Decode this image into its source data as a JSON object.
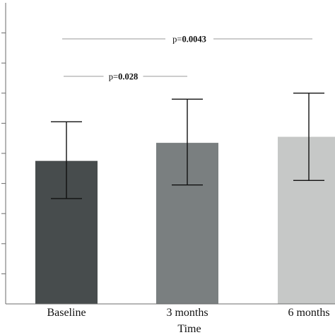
{
  "chart_data": {
    "type": "bar",
    "title": "",
    "xlabel": "Time",
    "ylabel": "",
    "ylim": [
      0,
      100
    ],
    "grid": false,
    "legend": "none",
    "categories": [
      "Baseline",
      "3 months",
      "6 months"
    ],
    "values": [
      47.5,
      53.5,
      55.5
    ],
    "error_bars": [
      {
        "low": 35,
        "high": 60.5
      },
      {
        "low": 39.5,
        "high": 68
      },
      {
        "low": 41,
        "high": 70
      }
    ],
    "colors": [
      "#474c4d",
      "#7a7f80",
      "#c6c8c7"
    ],
    "annotations": [
      {
        "prefix": "p=",
        "value": "0.028",
        "from": 0,
        "to": 1
      },
      {
        "prefix": "p=",
        "value": "0.0043",
        "from": 0,
        "to": 2
      }
    ]
  }
}
